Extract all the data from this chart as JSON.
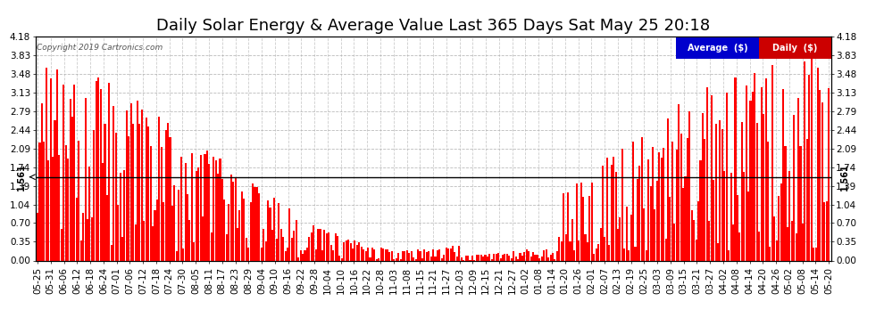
{
  "title": "Daily Solar Energy & Average Value Last 365 Days Sat May 25 20:18",
  "copyright": "Copyright 2019 Cartronics.com",
  "average_value": 1.561,
  "average_label": "Average  ($)",
  "daily_label": "Daily  ($)",
  "ylim": [
    0.0,
    4.18
  ],
  "yticks": [
    0.0,
    0.35,
    0.7,
    1.04,
    1.39,
    1.74,
    2.09,
    2.44,
    2.79,
    3.13,
    3.48,
    3.83,
    4.18
  ],
  "bar_color": "#ff0000",
  "avg_line_color": "#000000",
  "background_color": "#ffffff",
  "grid_color": "#aaaaaa",
  "title_fontsize": 13,
  "tick_fontsize": 7.5,
  "xlabels": [
    "05-25",
    "05-31",
    "06-06",
    "06-12",
    "06-18",
    "06-24",
    "07-01",
    "07-06",
    "07-12",
    "07-18",
    "07-24",
    "07-30",
    "08-05",
    "08-11",
    "08-17",
    "08-23",
    "08-29",
    "09-04",
    "09-10",
    "09-16",
    "09-22",
    "09-28",
    "10-04",
    "10-10",
    "10-16",
    "10-22",
    "10-28",
    "11-03",
    "11-08",
    "11-15",
    "11-21",
    "11-27",
    "12-03",
    "12-09",
    "12-15",
    "12-21",
    "12-27",
    "01-02",
    "01-08",
    "01-14",
    "01-20",
    "01-26",
    "02-01",
    "02-07",
    "02-13",
    "02-19",
    "02-25",
    "03-03",
    "03-09",
    "03-15",
    "03-21",
    "03-27",
    "04-02",
    "04-08",
    "04-14",
    "04-20",
    "04-26",
    "05-02",
    "05-08",
    "05-14",
    "05-20"
  ]
}
